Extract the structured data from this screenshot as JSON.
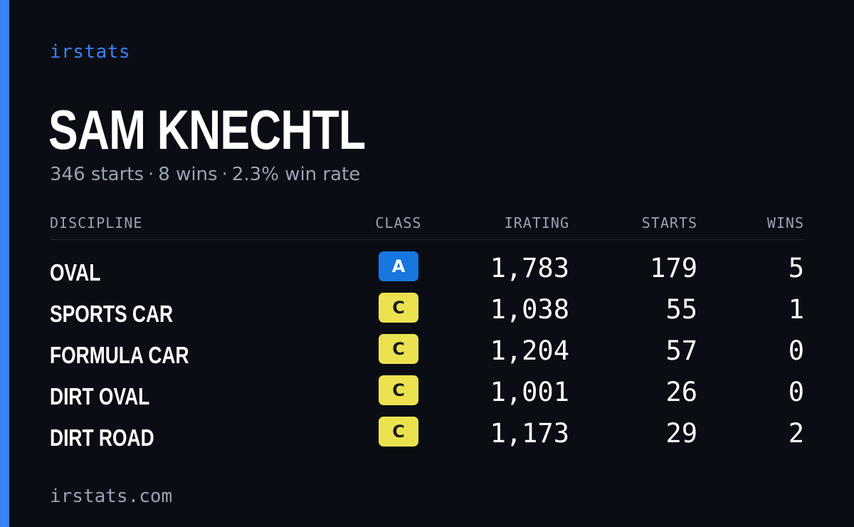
{
  "brand": "irstats",
  "driver": {
    "name": "SAM KNECHTL",
    "summary": {
      "starts": "346 starts",
      "wins": "8 wins",
      "win_rate": "2.3% win rate",
      "separator": "·"
    }
  },
  "colors": {
    "accent": "#3b82f6",
    "background": "#0a0d14",
    "muted_text": "#9aa3b2",
    "class_a": "#1677e0",
    "class_c": "#ece24f"
  },
  "table": {
    "headers": {
      "discipline": "DISCIPLINE",
      "class": "CLASS",
      "irating": "IRATING",
      "starts": "STARTS",
      "wins": "WINS"
    },
    "rows": [
      {
        "discipline": "OVAL",
        "class": "A",
        "irating": "1,783",
        "starts": "179",
        "wins": "5"
      },
      {
        "discipline": "SPORTS CAR",
        "class": "C",
        "irating": "1,038",
        "starts": "55",
        "wins": "1"
      },
      {
        "discipline": "FORMULA CAR",
        "class": "C",
        "irating": "1,204",
        "starts": "57",
        "wins": "0"
      },
      {
        "discipline": "DIRT OVAL",
        "class": "C",
        "irating": "1,001",
        "starts": "26",
        "wins": "0"
      },
      {
        "discipline": "DIRT ROAD",
        "class": "C",
        "irating": "1,173",
        "starts": "29",
        "wins": "2"
      }
    ]
  },
  "footer": "irstats.com"
}
